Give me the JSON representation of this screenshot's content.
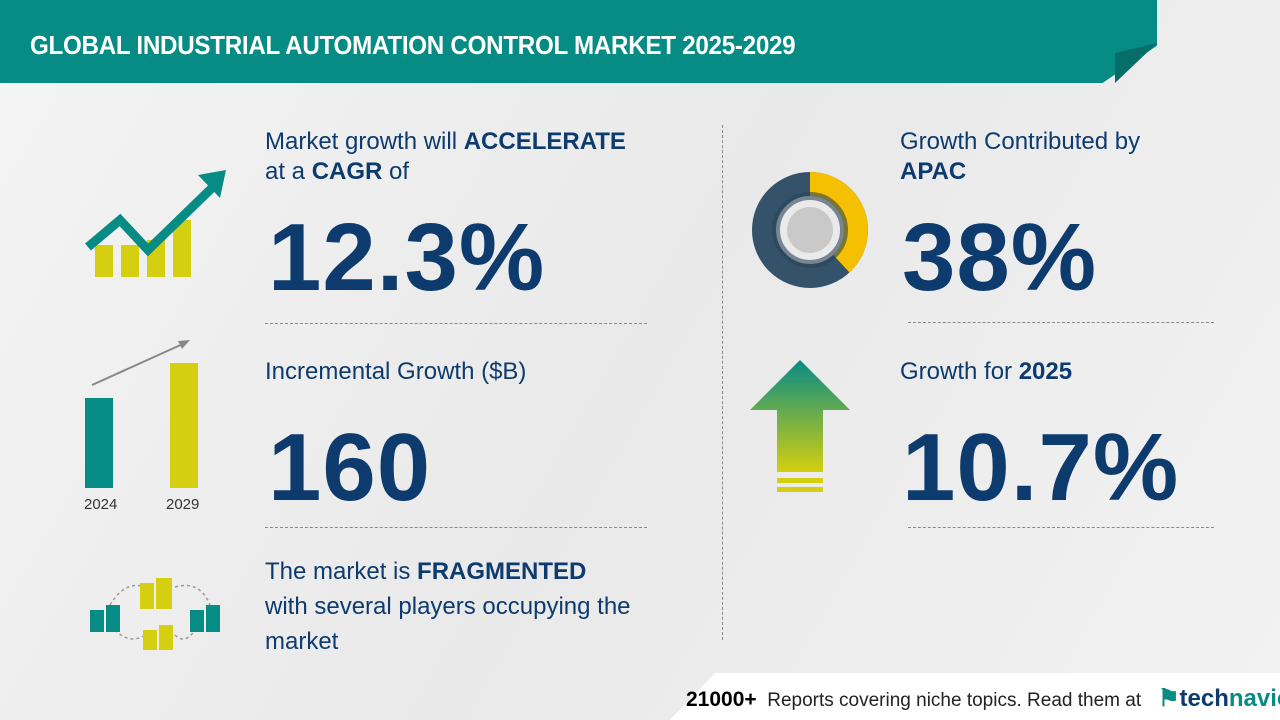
{
  "header": {
    "title": "GLOBAL INDUSTRIAL AUTOMATION CONTROL MARKET 2025-2029"
  },
  "cagr": {
    "prefix": "Market growth will ",
    "emphasis": "ACCELERATE",
    "line2_prefix": "at a ",
    "line2_emphasis": "CAGR",
    "line2_suffix": " of",
    "value": "12.3%",
    "icon": "growth-chart-arrow-icon"
  },
  "incremental": {
    "label": "Incremental Growth ($B)",
    "value": "160",
    "chart": {
      "years": [
        "2024",
        "2029"
      ],
      "icon": "bar-growth-icon"
    }
  },
  "fragmented": {
    "prefix": "The market is ",
    "emphasis": "FRAGMENTED",
    "line2": "with several players occupying the",
    "line3": "market",
    "icon": "buildings-network-icon"
  },
  "region": {
    "label": "Growth Contributed by",
    "region": "APAC",
    "value": "38%",
    "share": 38,
    "icon": "donut-chart-icon"
  },
  "yoy": {
    "label": "Growth for ",
    "year": "2025",
    "value": "10.7%",
    "icon": "up-arrow-icon"
  },
  "footer": {
    "count": "21000+",
    "text": "Reports covering niche topics. Read them at",
    "logo_a": "tech",
    "logo_b": "navio"
  },
  "colors": {
    "teal": "#078c85",
    "navy": "#0d3b6e",
    "yellow": "#d4cf10",
    "donut_yellow": "#f5c000",
    "donut_dark": "#34536a"
  }
}
